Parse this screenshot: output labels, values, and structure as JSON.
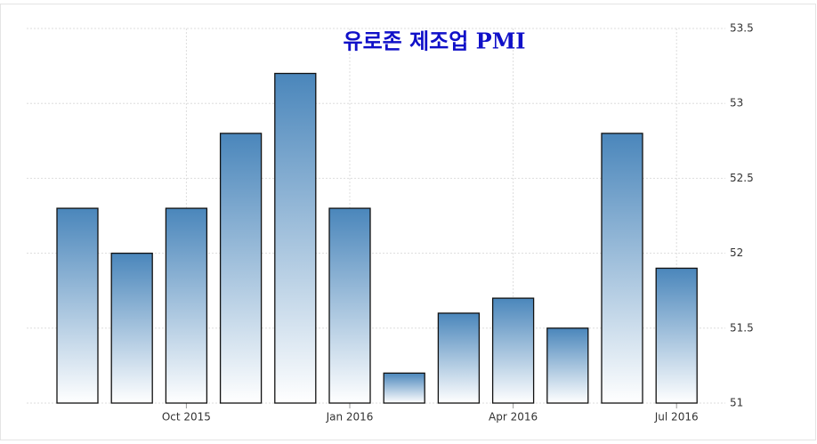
{
  "chart_data": {
    "type": "bar",
    "title": "유로존 제조업 PMI",
    "categories": [
      null,
      null,
      "Oct 2015",
      null,
      null,
      "Jan 2016",
      null,
      null,
      "Apr 2016",
      null,
      null,
      "Jul 2016"
    ],
    "values": [
      52.3,
      52.0,
      52.3,
      52.8,
      53.2,
      52.3,
      51.2,
      51.6,
      51.7,
      51.5,
      52.8,
      51.9
    ],
    "color": "#4a86bb",
    "ylim": [
      51,
      53.5
    ],
    "yticks": [
      51,
      51.5,
      52,
      52.5,
      53,
      53.5
    ],
    "grid": true
  }
}
